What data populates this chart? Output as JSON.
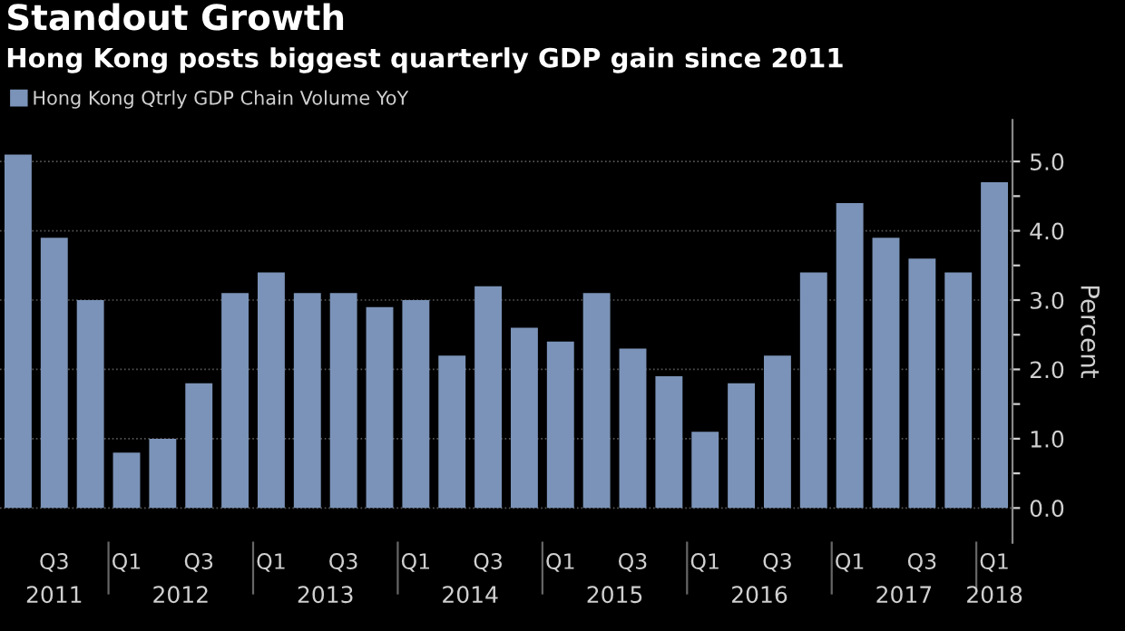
{
  "chart_data": {
    "type": "bar",
    "title": "Standout Growth",
    "subtitle": "Hong Kong posts biggest quarterly GDP gain since 2011",
    "categories": [
      null,
      "Q3",
      null,
      "Q1",
      null,
      "Q3",
      null,
      "Q1",
      null,
      "Q3",
      null,
      "Q1",
      null,
      "Q3",
      null,
      "Q1",
      null,
      "Q3",
      null,
      "Q1",
      null,
      "Q3",
      null,
      "Q1",
      null,
      "Q3",
      null,
      "Q1"
    ],
    "series": [
      {
        "name": "Hong Kong Qtrly GDP Chain Volume YoY",
        "color": "#7b93b8",
        "values": [
          5.1,
          3.9,
          3.0,
          0.8,
          1.0,
          1.8,
          3.1,
          3.4,
          3.1,
          3.1,
          2.9,
          3.0,
          2.2,
          3.2,
          2.6,
          2.4,
          3.1,
          2.3,
          1.9,
          1.1,
          1.8,
          2.2,
          3.4,
          4.4,
          3.9,
          3.6,
          3.4,
          4.7
        ]
      }
    ],
    "annotations": [
      "2011",
      "2012",
      "2013",
      "2014",
      "2015",
      "2016",
      "2017",
      "2018"
    ],
    "ylabel": "Percent",
    "ylim": [
      -0.5,
      5.6
    ],
    "yticks": [
      {
        "value": 0,
        "label": "0.0"
      },
      {
        "value": 0.5,
        "label": null
      },
      {
        "value": 1,
        "label": "1.0"
      },
      {
        "value": 1.5,
        "label": null
      },
      {
        "value": 2,
        "label": "2.0"
      },
      {
        "value": 2.5,
        "label": null
      },
      {
        "value": 3,
        "label": "3.0"
      },
      {
        "value": 3.5,
        "label": null
      },
      {
        "value": 4,
        "label": "4.0"
      },
      {
        "value": 4.5,
        "label": null
      },
      {
        "value": 5,
        "label": "5.0"
      }
    ],
    "grid": "y",
    "legend": "top left"
  }
}
